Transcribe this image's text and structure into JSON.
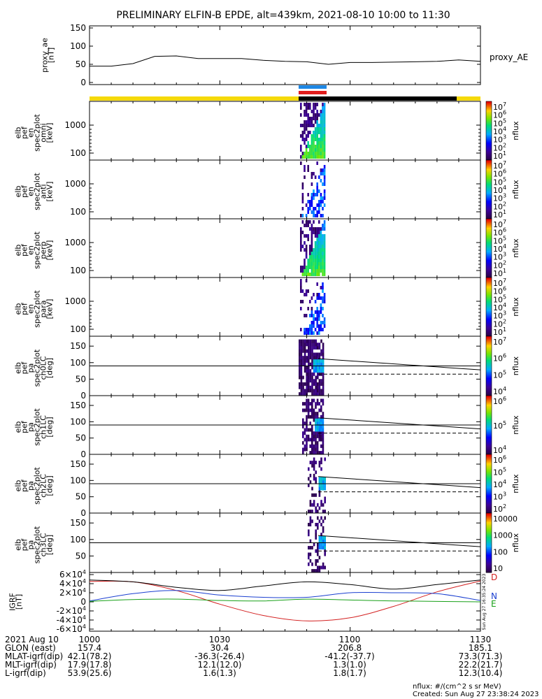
{
  "title": "PRELIMINARY ELFIN-B EPDE, alt=439km, 2021-08-10 10:00 to 11:30",
  "colors": {
    "sci_zone_blue": "#1e88e5",
    "sci_zone_red": "#e11d1d",
    "bar_yellow": "#f5d90a",
    "bar_black": "#000000",
    "igrf_d": "#d32020",
    "igrf_n": "#1a3fd0",
    "igrf_e": "#18a018"
  },
  "panels": {
    "proxy": {
      "ylabel": [
        "proxy_ae",
        "[nT]"
      ],
      "side_label": "proxy_AE",
      "ylim": [
        0,
        150
      ],
      "yticks": [
        "0",
        "50",
        "100",
        "150"
      ]
    },
    "spectra": [
      {
        "ylabel": [
          "elb",
          "pef",
          "en",
          "spec2plot",
          "omni",
          "[keV]"
        ],
        "yticks": [
          "100",
          "1000"
        ],
        "cbar_ticks": [
          "10",
          "10",
          "10",
          "10",
          "10",
          "10",
          "10"
        ],
        "cbar_exps": [
          "7",
          "6",
          "5",
          "4",
          "3",
          "2",
          "1"
        ],
        "cbar_label": "nflux"
      },
      {
        "ylabel": [
          "elb",
          "pef",
          "en",
          "spec2plot",
          "anti",
          "[keV]"
        ],
        "yticks": [
          "100",
          "1000"
        ],
        "cbar_ticks": [
          "10",
          "10",
          "10",
          "10",
          "10",
          "10",
          "10"
        ],
        "cbar_exps": [
          "7",
          "6",
          "5",
          "4",
          "3",
          "2",
          "1"
        ],
        "cbar_label": "nflux"
      },
      {
        "ylabel": [
          "elb",
          "pef",
          "en",
          "spec2plot",
          "perp",
          "[keV]"
        ],
        "yticks": [
          "100",
          "1000"
        ],
        "cbar_ticks": [
          "10",
          "10",
          "10",
          "10",
          "10",
          "10",
          "10"
        ],
        "cbar_exps": [
          "7",
          "6",
          "5",
          "4",
          "3",
          "2",
          "1"
        ],
        "cbar_label": "nflux"
      },
      {
        "ylabel": [
          "elb",
          "pef",
          "en",
          "spec2plot",
          "para",
          "[keV]"
        ],
        "yticks": [
          "100",
          "1000"
        ],
        "cbar_ticks": [
          "10",
          "10",
          "10",
          "10",
          "10",
          "10",
          "10"
        ],
        "cbar_exps": [
          "7",
          "6",
          "5",
          "4",
          "3",
          "2",
          "1"
        ],
        "cbar_label": "nflux"
      }
    ],
    "pitch": [
      {
        "ylabel": [
          "elb",
          "pef",
          "pa",
          "spec2plot",
          "ch0LC",
          "[deg]"
        ],
        "yticks": [
          "0",
          "50",
          "100",
          "150"
        ],
        "cbar_ticks": [
          "10",
          "10",
          "10",
          "10"
        ],
        "cbar_exps": [
          "7",
          "6",
          "5",
          "4"
        ],
        "cbar_label": "nflux"
      },
      {
        "ylabel": [
          "elb",
          "pef",
          "pa",
          "spec2plot",
          "ch1LC",
          "[deg]"
        ],
        "yticks": [
          "0",
          "50",
          "100",
          "150"
        ],
        "cbar_ticks": [
          "10",
          "10",
          "10"
        ],
        "cbar_exps": [
          "6",
          "5",
          "4"
        ],
        "cbar_label": "nflux"
      },
      {
        "ylabel": [
          "elb",
          "pef",
          "pa",
          "spec2plot",
          "ch2LC",
          "[deg]"
        ],
        "yticks": [
          "0",
          "50",
          "100",
          "150"
        ],
        "cbar_ticks": [
          "10",
          "10",
          "10",
          "10",
          "10"
        ],
        "cbar_exps": [
          "6",
          "5",
          "4",
          "3",
          "2"
        ],
        "cbar_label": "nflux"
      },
      {
        "ylabel": [
          "elb",
          "pef",
          "pa",
          "spec2plot",
          "ch3LC",
          "[deg]"
        ],
        "yticks": [
          "50",
          "100",
          "150"
        ],
        "cbar_ticks": [
          "10000",
          "1000",
          "100",
          "10"
        ],
        "cbar_label": "nflux"
      }
    ],
    "igrf": {
      "ylabel": [
        "IGRF",
        "[nT]"
      ],
      "ytick_mantissa": [
        "6",
        "4",
        "2",
        "0",
        "-2",
        "-4",
        "-6"
      ],
      "ytick_exp": "4",
      "component_labels": {
        "d": "D",
        "n": "N",
        "e": "E"
      },
      "side_note": "Sun Aug 27 16:35:24 2023"
    }
  },
  "chart_data": [
    {
      "type": "line",
      "title": "PRELIMINARY ELFIN-B EPDE, alt=439km, 2021-08-10 10:00 to 11:30",
      "ylabel": "proxy_ae [nT]",
      "ylim": [
        0,
        150
      ],
      "x": [
        "10:00",
        "10:05",
        "10:10",
        "10:15",
        "10:20",
        "10:25",
        "10:30",
        "10:35",
        "10:40",
        "10:45",
        "10:50",
        "10:55",
        "11:00",
        "11:05",
        "11:10",
        "11:15",
        "11:20",
        "11:25",
        "11:30"
      ],
      "series": [
        {
          "name": "proxy_AE",
          "values": [
            45,
            45,
            52,
            72,
            73,
            66,
            66,
            66,
            61,
            58,
            57,
            50,
            55,
            55,
            56,
            57,
            58,
            62,
            58
          ]
        }
      ]
    },
    {
      "type": "heatmap",
      "ylabel": "elb pef en spec2plot omni [keV]",
      "y_scale": "log",
      "ytick_labels": [
        "100",
        "1000"
      ],
      "colorbar_label": "nflux",
      "colorbar_range": [
        "1e1",
        "1e7"
      ]
    },
    {
      "type": "heatmap",
      "ylabel": "elb pef en spec2plot anti [keV]",
      "y_scale": "log",
      "colorbar_label": "nflux"
    },
    {
      "type": "heatmap",
      "ylabel": "elb pef en spec2plot perp [keV]",
      "y_scale": "log",
      "colorbar_label": "nflux"
    },
    {
      "type": "heatmap",
      "ylabel": "elb pef en spec2plot para [keV]",
      "y_scale": "log",
      "colorbar_label": "nflux"
    },
    {
      "type": "heatmap",
      "ylabel": "elb pef pa spec2plot ch0LC [deg]",
      "ylim": [
        0,
        180
      ],
      "colorbar_label": "nflux"
    },
    {
      "type": "heatmap",
      "ylabel": "elb pef pa spec2plot ch1LC [deg]",
      "ylim": [
        0,
        180
      ],
      "colorbar_label": "nflux"
    },
    {
      "type": "heatmap",
      "ylabel": "elb pef pa spec2plot ch2LC [deg]",
      "ylim": [
        0,
        180
      ],
      "colorbar_label": "nflux"
    },
    {
      "type": "heatmap",
      "ylabel": "elb pef pa spec2plot ch3LC [deg]",
      "ylim": [
        0,
        180
      ],
      "colorbar_label": "nflux",
      "colorbar_range": [
        "10",
        "10000"
      ]
    },
    {
      "type": "line",
      "ylabel": "IGRF [nT]",
      "ylim": [
        -60000,
        60000
      ],
      "x": [
        "10:00",
        "10:10",
        "10:20",
        "10:30",
        "10:40",
        "10:50",
        "11:00",
        "11:10",
        "11:20",
        "11:30"
      ],
      "series": [
        {
          "name": "D",
          "values": [
            45000,
            44000,
            25000,
            -5000,
            -30000,
            -42000,
            -35000,
            -10000,
            22000,
            46000
          ]
        },
        {
          "name": "N",
          "values": [
            2000,
            18000,
            25000,
            15000,
            10000,
            10000,
            20000,
            20000,
            18000,
            3000
          ]
        },
        {
          "name": "E",
          "values": [
            1000,
            5000,
            6000,
            3000,
            2000,
            6000,
            4000,
            2000,
            1000,
            0
          ]
        },
        {
          "values": [
            48000,
            44000,
            32000,
            25000,
            35000,
            44000,
            38000,
            28000,
            38000,
            48000
          ]
        }
      ]
    }
  ],
  "footer": {
    "row_labels": [
      "2021 Aug 10",
      "GLON (east)",
      "MLAT-igrf(dip)",
      "MLT-igrf(dip)",
      "L-igrf(dip)"
    ],
    "times": [
      "1000",
      "1030",
      "1100",
      "1130"
    ],
    "columns": [
      [
        "157.4",
        "42.1(78.2)",
        "17.9(17.8)",
        "53.9(25.6)"
      ],
      [
        "30.4",
        "-36.3(-26.4)",
        "12.1(12.0)",
        "1.6(1.3)"
      ],
      [
        "206.8",
        "-41.2(-37.7)",
        "1.3(1.0)",
        "1.8(1.7)"
      ],
      [
        "185.1",
        "73.3(71.3)",
        "22.2(21.7)",
        "12.3(10.4)"
      ]
    ],
    "units_note": "nflux: #/(cm^2 s sr MeV)",
    "created": "Created: Sun Aug 27 23:38:24 2023"
  }
}
